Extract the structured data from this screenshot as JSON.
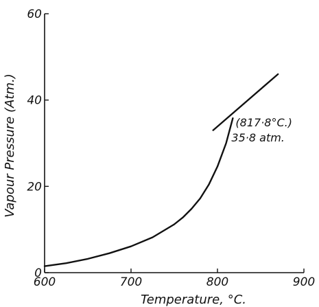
{
  "chart_data": {
    "type": "line",
    "title": "",
    "xlabel": "Temperature, °C.",
    "ylabel": "Vapour Pressure (Atm.)",
    "xlim": [
      600,
      900
    ],
    "ylim": [
      0,
      60
    ],
    "x_ticks": [
      600,
      700,
      800,
      900
    ],
    "y_ticks": [
      0,
      20,
      40,
      60
    ],
    "x_tick_labels": [
      "600",
      "700",
      "800",
      "900"
    ],
    "y_tick_labels": [
      "0",
      "20",
      "40",
      "60"
    ],
    "grid": false,
    "legend": "none",
    "series": [
      {
        "points": [
          [
            600,
            1.5
          ],
          [
            625,
            2.2
          ],
          [
            650,
            3.2
          ],
          [
            675,
            4.5
          ],
          [
            700,
            6.1
          ],
          [
            725,
            8.2
          ],
          [
            750,
            11.2
          ],
          [
            760,
            12.8
          ],
          [
            770,
            14.8
          ],
          [
            780,
            17.2
          ],
          [
            790,
            20.4
          ],
          [
            800,
            24.6
          ],
          [
            810,
            30.0
          ],
          [
            817.8,
            35.8
          ]
        ]
      },
      {
        "points": [
          [
            795,
            33.0
          ],
          [
            870,
            46.0
          ]
        ]
      }
    ],
    "annotations": [
      {
        "lines": [
          "(817·8°C.)",
          "35·8 atm."
        ],
        "x": 817.8,
        "y": 35.8
      }
    ],
    "colors": {
      "line": "#111111",
      "axis": "#111111"
    }
  }
}
